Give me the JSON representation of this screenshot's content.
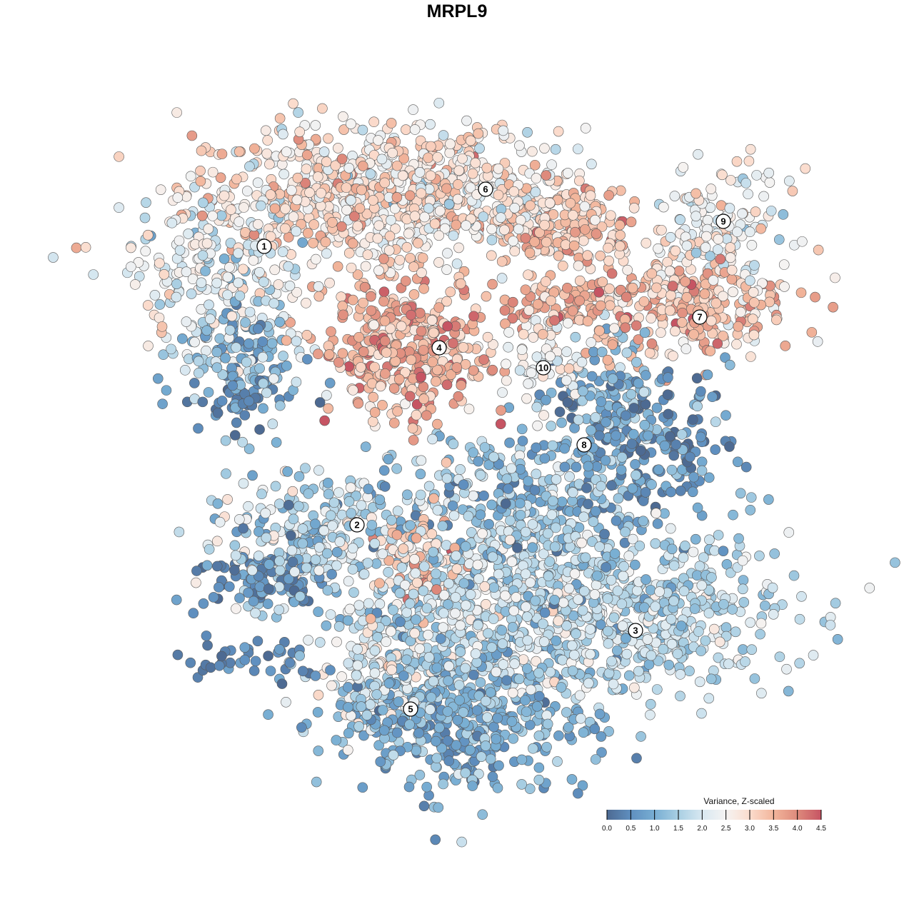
{
  "chart_data": {
    "type": "scatter",
    "title": "MRPL9",
    "xlabel": "",
    "ylabel": "",
    "xlim": [
      -47,
      47
    ],
    "ylim": [
      -46,
      46
    ],
    "grid": false,
    "note": "Points summarised as clusters in embedding units (center, spread, count, mean value, value sd); individual points generated deterministically from these.",
    "point_groups": [
      {
        "cx": -18.5,
        "cy": 36.5,
        "sx": 11,
        "sy": 5,
        "n": 520,
        "v": 2.9,
        "vsd": 0.5
      },
      {
        "cx": -36.5,
        "cy": 26.5,
        "sx": 6,
        "sy": 6,
        "n": 200,
        "v": 2.2,
        "vsd": 0.5
      },
      {
        "cx": -32.5,
        "cy": 13.5,
        "sx": 4.5,
        "sy": 5,
        "n": 150,
        "v": 1.2,
        "vsd": 0.6
      },
      {
        "cx": -32.5,
        "cy": 7.5,
        "sx": 2.5,
        "sy": 1.5,
        "n": 40,
        "v": 0.3,
        "vsd": 0.2
      },
      {
        "cx": -0.5,
        "cy": 36.5,
        "sx": 8,
        "sy": 4.5,
        "n": 300,
        "v": 2.6,
        "vsd": 0.5
      },
      {
        "cx": 12.5,
        "cy": 31.5,
        "sx": 5,
        "sy": 3,
        "n": 150,
        "v": 3.3,
        "vsd": 0.4
      },
      {
        "cx": -9.5,
        "cy": 14.5,
        "sx": 5.5,
        "sy": 5,
        "n": 350,
        "v": 3.5,
        "vsd": 0.5
      },
      {
        "cx": 29.5,
        "cy": 20.5,
        "sx": 8,
        "sy": 3.5,
        "n": 250,
        "v": 3.3,
        "vsd": 0.5
      },
      {
        "cx": 34.5,
        "cy": 31.5,
        "sx": 5,
        "sy": 4,
        "n": 150,
        "v": 2.4,
        "vsd": 0.5
      },
      {
        "cx": 9.5,
        "cy": 13.5,
        "sx": 3,
        "sy": 4,
        "n": 60,
        "v": 2.4,
        "vsd": 0.3
      },
      {
        "cx": 11.5,
        "cy": 20.5,
        "sx": 4,
        "sy": 2,
        "n": 80,
        "v": 3.6,
        "vsd": 0.4
      },
      {
        "cx": 23.5,
        "cy": 1.5,
        "sx": 6,
        "sy": 5,
        "n": 220,
        "v": 0.6,
        "vsd": 0.5
      },
      {
        "cx": 18.5,
        "cy": 9.5,
        "sx": 3,
        "sy": 4,
        "n": 80,
        "v": 1.1,
        "vsd": 0.5
      },
      {
        "cx": -24.5,
        "cy": -12.5,
        "sx": 7,
        "sy": 5,
        "n": 280,
        "v": 1.6,
        "vsd": 0.6
      },
      {
        "cx": -28.5,
        "cy": -17.5,
        "sx": 4,
        "sy": 2,
        "n": 80,
        "v": 0.4,
        "vsd": 0.3
      },
      {
        "cx": 5.5,
        "cy": -8.5,
        "sx": 10,
        "sy": 6,
        "n": 400,
        "v": 1.3,
        "vsd": 0.6
      },
      {
        "cx": -7.5,
        "cy": -14.5,
        "sx": 3,
        "sy": 3,
        "n": 80,
        "v": 3.3,
        "vsd": 0.5
      },
      {
        "cx": 22.5,
        "cy": -22.5,
        "sx": 11,
        "sy": 6,
        "n": 500,
        "v": 1.7,
        "vsd": 0.4
      },
      {
        "cx": 1.5,
        "cy": -21.5,
        "sx": 9,
        "sy": 5,
        "n": 400,
        "v": 1.9,
        "vsd": 0.5
      },
      {
        "cx": -2.5,
        "cy": -37.5,
        "sx": 9,
        "sy": 5,
        "n": 450,
        "v": 1.0,
        "vsd": 0.4
      },
      {
        "cx": -12.5,
        "cy": -29.5,
        "sx": 5,
        "sy": 4,
        "n": 150,
        "v": 2.1,
        "vsd": 0.5
      },
      {
        "cx": -31.5,
        "cy": -29.5,
        "sx": 4,
        "sy": 2,
        "n": 40,
        "v": 0.4,
        "vsd": 0.3
      }
    ],
    "cluster_labels": [
      {
        "label": "1",
        "x": -29.5,
        "y": 29
      },
      {
        "label": "2",
        "x": -16.5,
        "y": -10
      },
      {
        "label": "3",
        "x": 22.5,
        "y": -24.8
      },
      {
        "label": "4",
        "x": -5,
        "y": 14.8
      },
      {
        "label": "5",
        "x": -9,
        "y": -35.8
      },
      {
        "label": "6",
        "x": 1.5,
        "y": 37
      },
      {
        "label": "7",
        "x": 31.5,
        "y": 19.1
      },
      {
        "label": "8",
        "x": 15.3,
        "y": 1.2
      },
      {
        "label": "9",
        "x": 34.8,
        "y": 32.5
      },
      {
        "label": "10",
        "x": 9.6,
        "y": 12
      }
    ],
    "legend": {
      "title": "Variance, Z-scaled",
      "position": "bottom-right",
      "range": [
        0,
        4.5
      ],
      "ticks": [
        "0.0",
        "0.5",
        "1.0",
        "1.5",
        "2.0",
        "2.5",
        "3.0",
        "3.5",
        "4.0",
        "4.5"
      ],
      "colors": [
        "#4d6a92",
        "#5f8fbf",
        "#78aed3",
        "#a9cfe3",
        "#d8e8f1",
        "#f5f3f2",
        "#fbdccd",
        "#f2b59b",
        "#de8a7c",
        "#c65463"
      ]
    }
  }
}
